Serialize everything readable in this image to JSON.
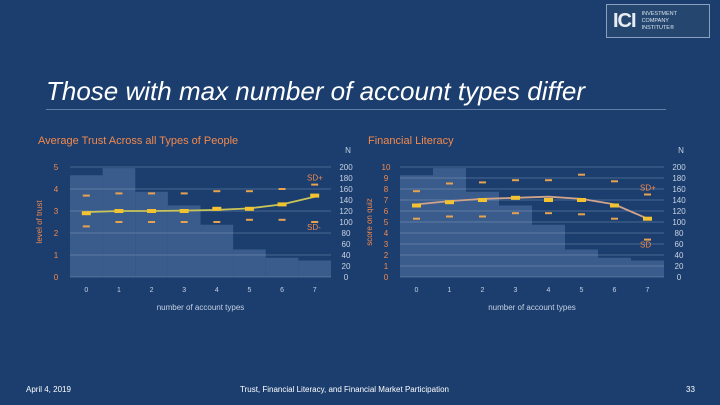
{
  "logo": {
    "mark": "ICI",
    "lines": [
      "INVESTMENT",
      "COMPANY",
      "INSTITUTE®"
    ]
  },
  "slide_title": "Those with max number of account types differ",
  "footer": {
    "date": "April 4, 2019",
    "center": "Trust, Financial Literacy, and Financial Market Participation",
    "page": "33"
  },
  "colors": {
    "background": "#1b3e6f",
    "title_text": "#ffffff",
    "chart_title": "#f4894a",
    "bars": "#3a5c8c",
    "mean_marker": "#f2c230",
    "sd_marker": "#e7a24f",
    "trend_left": "#c9c45a",
    "trend_right": "#d0a38a",
    "grid": "#9fb3cc",
    "axis_text": "#c7d2e2"
  },
  "chart_data": [
    {
      "type": "bar",
      "title": "Average Trust Across all Types of People",
      "xlabel": "number of account types",
      "ylabel": "level of trust",
      "y2label": "N",
      "categories": [
        "0",
        "1",
        "2",
        "3",
        "4",
        "5",
        "6",
        "7"
      ],
      "ylim": [
        0,
        5
      ],
      "yticks": [
        "0",
        "1",
        "2",
        "3",
        "4",
        "5"
      ],
      "y2lim": [
        0,
        200
      ],
      "y2ticks": [
        "0",
        "20",
        "40",
        "60",
        "80",
        "100",
        "120",
        "140",
        "160",
        "180",
        "200"
      ],
      "series": [
        {
          "kind": "bar",
          "axis": "right",
          "values": [
            185,
            198,
            155,
            130,
            95,
            50,
            35,
            30
          ]
        },
        {
          "kind": "marker",
          "values": [
            2.9,
            3.0,
            3.0,
            3.0,
            3.1,
            3.1,
            3.3,
            3.7
          ]
        },
        {
          "kind": "marker",
          "name": "SD+",
          "values": [
            3.7,
            3.8,
            3.8,
            3.8,
            3.9,
            3.9,
            4.0,
            4.2
          ]
        },
        {
          "kind": "marker",
          "name": "SD-",
          "values": [
            2.3,
            2.5,
            2.5,
            2.5,
            2.5,
            2.6,
            2.6,
            2.5
          ]
        },
        {
          "kind": "trendline",
          "values": [
            2.95,
            3.0,
            3.0,
            3.02,
            3.05,
            3.12,
            3.3,
            3.65
          ]
        }
      ],
      "annotations": [
        "SD+",
        "SD-"
      ],
      "grid": true
    },
    {
      "type": "bar",
      "title": "Financial Literacy",
      "xlabel": "number of account types",
      "ylabel": "score on quiz",
      "y2label": "N",
      "categories": [
        "0",
        "1",
        "2",
        "3",
        "4",
        "5",
        "6",
        "7"
      ],
      "ylim": [
        0,
        10
      ],
      "yticks": [
        "0",
        "1",
        "2",
        "3",
        "4",
        "5",
        "6",
        "7",
        "8",
        "9",
        "10"
      ],
      "y2lim": [
        0,
        200
      ],
      "y2ticks": [
        "0",
        "20",
        "40",
        "60",
        "80",
        "100",
        "120",
        "140",
        "160",
        "180",
        "200"
      ],
      "series": [
        {
          "kind": "bar",
          "axis": "right",
          "values": [
            185,
            198,
            155,
            130,
            95,
            50,
            35,
            30
          ]
        },
        {
          "kind": "marker",
          "values": [
            6.5,
            6.8,
            7.0,
            7.2,
            7.0,
            7.0,
            6.5,
            5.3
          ]
        },
        {
          "kind": "marker",
          "name": "SD+",
          "values": [
            7.8,
            8.5,
            8.6,
            8.8,
            8.8,
            9.3,
            8.7,
            7.5
          ]
        },
        {
          "kind": "marker",
          "name": "SD-",
          "values": [
            5.3,
            5.5,
            5.5,
            5.8,
            5.8,
            5.7,
            5.3,
            3.4
          ]
        },
        {
          "kind": "trendline",
          "values": [
            6.6,
            6.9,
            7.1,
            7.2,
            7.3,
            7.1,
            6.6,
            5.3
          ]
        }
      ],
      "annotations": [
        "SD+",
        "SD"
      ],
      "grid": true
    }
  ]
}
